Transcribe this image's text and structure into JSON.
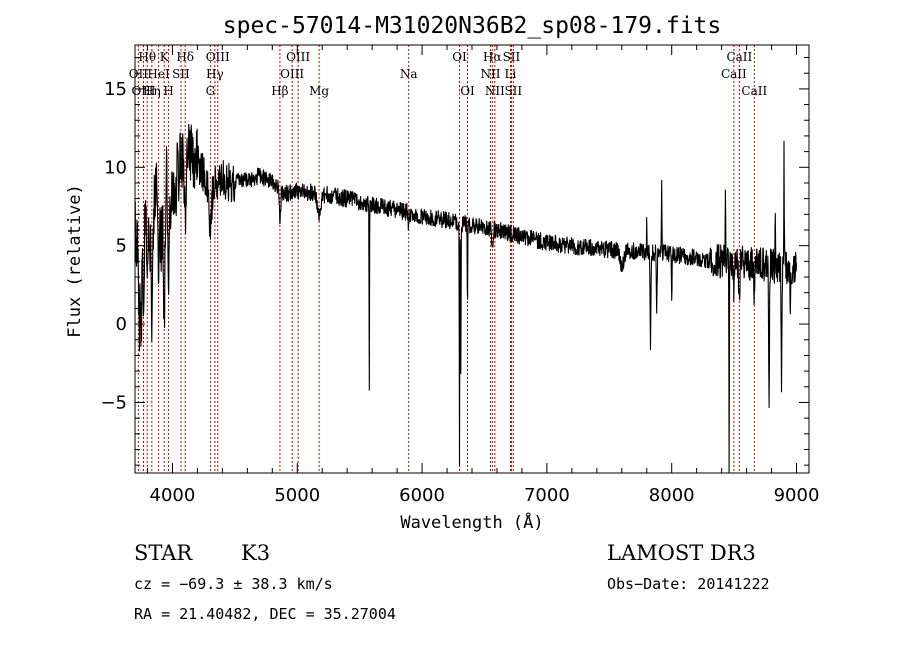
{
  "chart_data": {
    "type": "line",
    "title": "spec-57014-M31020N36B2_sp08-179.fits",
    "xlabel": "Wavelength (Å)",
    "ylabel": "Flux (relative)",
    "xlim": [
      3700,
      9100
    ],
    "ylim": [
      -9.5,
      17.8
    ],
    "xticks": [
      4000,
      5000,
      6000,
      7000,
      8000,
      9000
    ],
    "yticks": [
      -5,
      0,
      5,
      10,
      15
    ],
    "spectral_lines": [
      {
        "name": "Hθ",
        "wavelength": 3798,
        "row": 0
      },
      {
        "name": "K",
        "wavelength": 3934,
        "row": 0
      },
      {
        "name": "Hδ",
        "wavelength": 4102,
        "row": 0
      },
      {
        "name": "OIII",
        "wavelength": 4363,
        "row": 0
      },
      {
        "name": "OIII",
        "wavelength": 5007,
        "row": 0
      },
      {
        "name": "OI",
        "wavelength": 6300,
        "row": 0
      },
      {
        "name": "Hα",
        "wavelength": 6563,
        "row": 0
      },
      {
        "name": "SII",
        "wavelength": 6716,
        "row": 0
      },
      {
        "name": "CaII",
        "wavelength": 8542,
        "row": 0
      },
      {
        "name": "OII",
        "wavelength": 3727,
        "row": 1
      },
      {
        "name": "HeI",
        "wavelength": 3889,
        "row": 1
      },
      {
        "name": "SII",
        "wavelength": 4068,
        "row": 1
      },
      {
        "name": "Hγ",
        "wavelength": 4340,
        "row": 1
      },
      {
        "name": "OIII",
        "wavelength": 4959,
        "row": 1
      },
      {
        "name": "Na",
        "wavelength": 5893,
        "row": 1
      },
      {
        "name": "NII",
        "wavelength": 6548,
        "row": 1
      },
      {
        "name": "Li",
        "wavelength": 6708,
        "row": 1
      },
      {
        "name": "CaII",
        "wavelength": 8498,
        "row": 1
      },
      {
        "name": "OIII",
        "wavelength": 3768,
        "row": 2
      },
      {
        "name": "Hη",
        "wavelength": 3835,
        "row": 2
      },
      {
        "name": "H",
        "wavelength": 3969,
        "row": 2
      },
      {
        "name": "G",
        "wavelength": 4304,
        "row": 2
      },
      {
        "name": "Hβ",
        "wavelength": 4861,
        "row": 2
      },
      {
        "name": "Mg",
        "wavelength": 5175,
        "row": 2
      },
      {
        "name": "OI",
        "wavelength": 6364,
        "row": 2
      },
      {
        "name": "NII",
        "wavelength": 6583,
        "row": 2
      },
      {
        "name": "SII",
        "wavelength": 6731,
        "row": 2
      },
      {
        "name": "CaII",
        "wavelength": 8662,
        "row": 2
      }
    ],
    "anchors": [
      [
        3700,
        6.0
      ],
      [
        3740,
        3.0
      ],
      [
        3790,
        8.5
      ],
      [
        3830,
        4.5
      ],
      [
        3870,
        9.5
      ],
      [
        3910,
        5.5
      ],
      [
        3950,
        9.5
      ],
      [
        4000,
        7.5
      ],
      [
        4050,
        10.0
      ],
      [
        4100,
        10.8
      ],
      [
        4150,
        10.8
      ],
      [
        4200,
        10.3
      ],
      [
        4300,
        8.8
      ],
      [
        4400,
        9.3
      ],
      [
        4500,
        9.0
      ],
      [
        4600,
        9.2
      ],
      [
        4700,
        9.5
      ],
      [
        4800,
        9.0
      ],
      [
        4900,
        8.3
      ],
      [
        5000,
        8.5
      ],
      [
        5200,
        8.3
      ],
      [
        5400,
        8.0
      ],
      [
        5600,
        7.6
      ],
      [
        5800,
        7.3
      ],
      [
        6000,
        6.9
      ],
      [
        6200,
        6.6
      ],
      [
        6400,
        6.3
      ],
      [
        6600,
        6.0
      ],
      [
        6800,
        5.6
      ],
      [
        7000,
        5.2
      ],
      [
        7200,
        5.0
      ],
      [
        7400,
        4.8
      ],
      [
        7600,
        4.7
      ],
      [
        7800,
        4.6
      ],
      [
        8000,
        4.5
      ],
      [
        8200,
        4.2
      ],
      [
        8400,
        4.0
      ],
      [
        8600,
        3.9
      ],
      [
        8800,
        3.7
      ],
      [
        9000,
        3.6
      ]
    ],
    "features": [
      {
        "center": 3733,
        "depth": 5.0,
        "width": 4
      },
      {
        "center": 3750,
        "depth": 4.5,
        "width": 4
      },
      {
        "center": 3770,
        "depth": 4.0,
        "width": 5
      },
      {
        "center": 3798,
        "depth": 4.0,
        "width": 5
      },
      {
        "center": 3835,
        "depth": 4.5,
        "width": 5
      },
      {
        "center": 3889,
        "depth": 6.0,
        "width": 5
      },
      {
        "center": 3934,
        "depth": 8.5,
        "width": 6
      },
      {
        "center": 3969,
        "depth": 6.0,
        "width": 6
      },
      {
        "center": 4102,
        "depth": 3.5,
        "width": 6
      },
      {
        "center": 4304,
        "depth": 2.5,
        "width": 10
      },
      {
        "center": 4861,
        "depth": 1.8,
        "width": 6
      },
      {
        "center": 5175,
        "depth": 1.5,
        "width": 15
      },
      {
        "center": 5577,
        "depth": 13.0,
        "width": 1.5
      },
      {
        "center": 5893,
        "depth": 0.8,
        "width": 5
      },
      {
        "center": 6300,
        "depth": 15.0,
        "width": 2
      },
      {
        "center": 6310,
        "depth": 10.0,
        "width": 2
      },
      {
        "center": 6364,
        "depth": 6.0,
        "width": 2
      },
      {
        "center": 6563,
        "depth": 1.5,
        "width": 4
      },
      {
        "center": 7600,
        "depth": 1.0,
        "width": 15
      },
      {
        "center": 7800,
        "depth": -2.0,
        "width": 2
      },
      {
        "center": 7830,
        "depth": 6.5,
        "width": 3
      },
      {
        "center": 7880,
        "depth": 4.0,
        "width": 3
      },
      {
        "center": 7920,
        "depth": -4.5,
        "width": 2
      },
      {
        "center": 8000,
        "depth": 2.5,
        "width": 3
      },
      {
        "center": 8430,
        "depth": -5.0,
        "width": 2
      },
      {
        "center": 8460,
        "depth": 12.5,
        "width": 2
      },
      {
        "center": 8498,
        "depth": 1.5,
        "width": 5
      },
      {
        "center": 8542,
        "depth": 2.0,
        "width": 5
      },
      {
        "center": 8662,
        "depth": 1.8,
        "width": 5
      },
      {
        "center": 8780,
        "depth": 8.5,
        "width": 3
      },
      {
        "center": 8830,
        "depth": -3.0,
        "width": 2
      },
      {
        "center": 8880,
        "depth": 7.5,
        "width": 3
      },
      {
        "center": 8900,
        "depth": -7.0,
        "width": 2
      },
      {
        "center": 8950,
        "depth": 3.0,
        "width": 3
      }
    ],
    "noise_amplitude": 0.55
  },
  "info": {
    "object_class": "STAR",
    "subclass": "K3",
    "survey": "LAMOST DR3",
    "redshift": "cz = −69.3 ± 38.3 km/s",
    "obs_date": "Obs−Date: 20141222",
    "coords": "RA =  21.40482, DEC =  35.27004"
  },
  "colors": {
    "spectrum": "#000000",
    "line_marker": "#cc0000",
    "axis": "#000000"
  }
}
